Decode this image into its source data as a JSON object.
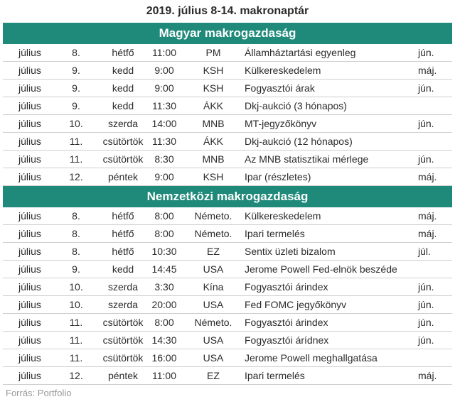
{
  "title": "2019. július 8-14. makronaptár",
  "sections": [
    {
      "header": "Magyar makrogazdaság",
      "rows": [
        {
          "month": "július",
          "day": "8.",
          "weekday": "hétfő",
          "time": "11:00",
          "source": "PM",
          "event": "Államháztartási egyenleg",
          "ref": "jún."
        },
        {
          "month": "július",
          "day": "9.",
          "weekday": "kedd",
          "time": "9:00",
          "source": "KSH",
          "event": "Külkereskedelem",
          "ref": "máj."
        },
        {
          "month": "július",
          "day": "9.",
          "weekday": "kedd",
          "time": "9:00",
          "source": "KSH",
          "event": "Fogyasztói árak",
          "ref": "jún."
        },
        {
          "month": "július",
          "day": "9.",
          "weekday": "kedd",
          "time": "11:30",
          "source": "ÁKK",
          "event": "Dkj-aukció (3 hónapos)",
          "ref": ""
        },
        {
          "month": "július",
          "day": "10.",
          "weekday": "szerda",
          "time": "14:00",
          "source": "MNB",
          "event": "MT-jegyzőkönyv",
          "ref": "jún."
        },
        {
          "month": "július",
          "day": "11.",
          "weekday": "csütörtök",
          "time": "11:30",
          "source": "ÁKK",
          "event": "Dkj-aukció (12 hónapos)",
          "ref": ""
        },
        {
          "month": "július",
          "day": "11.",
          "weekday": "csütörtök",
          "time": "8:30",
          "source": "MNB",
          "event": "Az MNB statisztikai mérlege",
          "ref": "jún."
        },
        {
          "month": "július",
          "day": "12.",
          "weekday": "péntek",
          "time": "9:00",
          "source": "KSH",
          "event": "Ipar (részletes)",
          "ref": "máj."
        }
      ]
    },
    {
      "header": "Nemzetközi makrogazdaság",
      "rows": [
        {
          "month": "július",
          "day": "8.",
          "weekday": "hétfő",
          "time": "8:00",
          "source": "Németo.",
          "event": "Külkereskedelem",
          "ref": "máj."
        },
        {
          "month": "július",
          "day": "8.",
          "weekday": "hétfő",
          "time": "8:00",
          "source": "Németo.",
          "event": "Ipari termelés",
          "ref": "máj."
        },
        {
          "month": "július",
          "day": "8.",
          "weekday": "hétfő",
          "time": "10:30",
          "source": "EZ",
          "event": "Sentix üzleti bizalom",
          "ref": "júl."
        },
        {
          "month": "július",
          "day": "9.",
          "weekday": "kedd",
          "time": "14:45",
          "source": "USA",
          "event": "Jerome Powell Fed-elnök beszéde",
          "ref": ""
        },
        {
          "month": "július",
          "day": "10.",
          "weekday": "szerda",
          "time": "3:30",
          "source": "Kína",
          "event": "Fogyasztói árindex",
          "ref": "jún."
        },
        {
          "month": "július",
          "day": "10.",
          "weekday": "szerda",
          "time": "20:00",
          "source": "USA",
          "event": "Fed FOMC jegyőkönyv",
          "ref": "jún."
        },
        {
          "month": "július",
          "day": "11.",
          "weekday": "csütörtök",
          "time": "8:00",
          "source": "Németo.",
          "event": "Fogyasztói árindex",
          "ref": "jún."
        },
        {
          "month": "július",
          "day": "11.",
          "weekday": "csütörtök",
          "time": "14:30",
          "source": "USA",
          "event": "Fogyasztói árídnex",
          "ref": "jún."
        },
        {
          "month": "július",
          "day": "11.",
          "weekday": "csütörtök",
          "time": "16:00",
          "source": "USA",
          "event": "Jerome Powell meghallgatása",
          "ref": ""
        },
        {
          "month": "július",
          "day": "12.",
          "weekday": "péntek",
          "time": "11:00",
          "source": "EZ",
          "event": "Ipari termelés",
          "ref": "máj."
        }
      ]
    }
  ],
  "source_note": "Forrás: Portfolio",
  "colors": {
    "header_bg": "#1f8a7a",
    "header_text": "#ffffff",
    "divider": "#cfcfcf"
  }
}
